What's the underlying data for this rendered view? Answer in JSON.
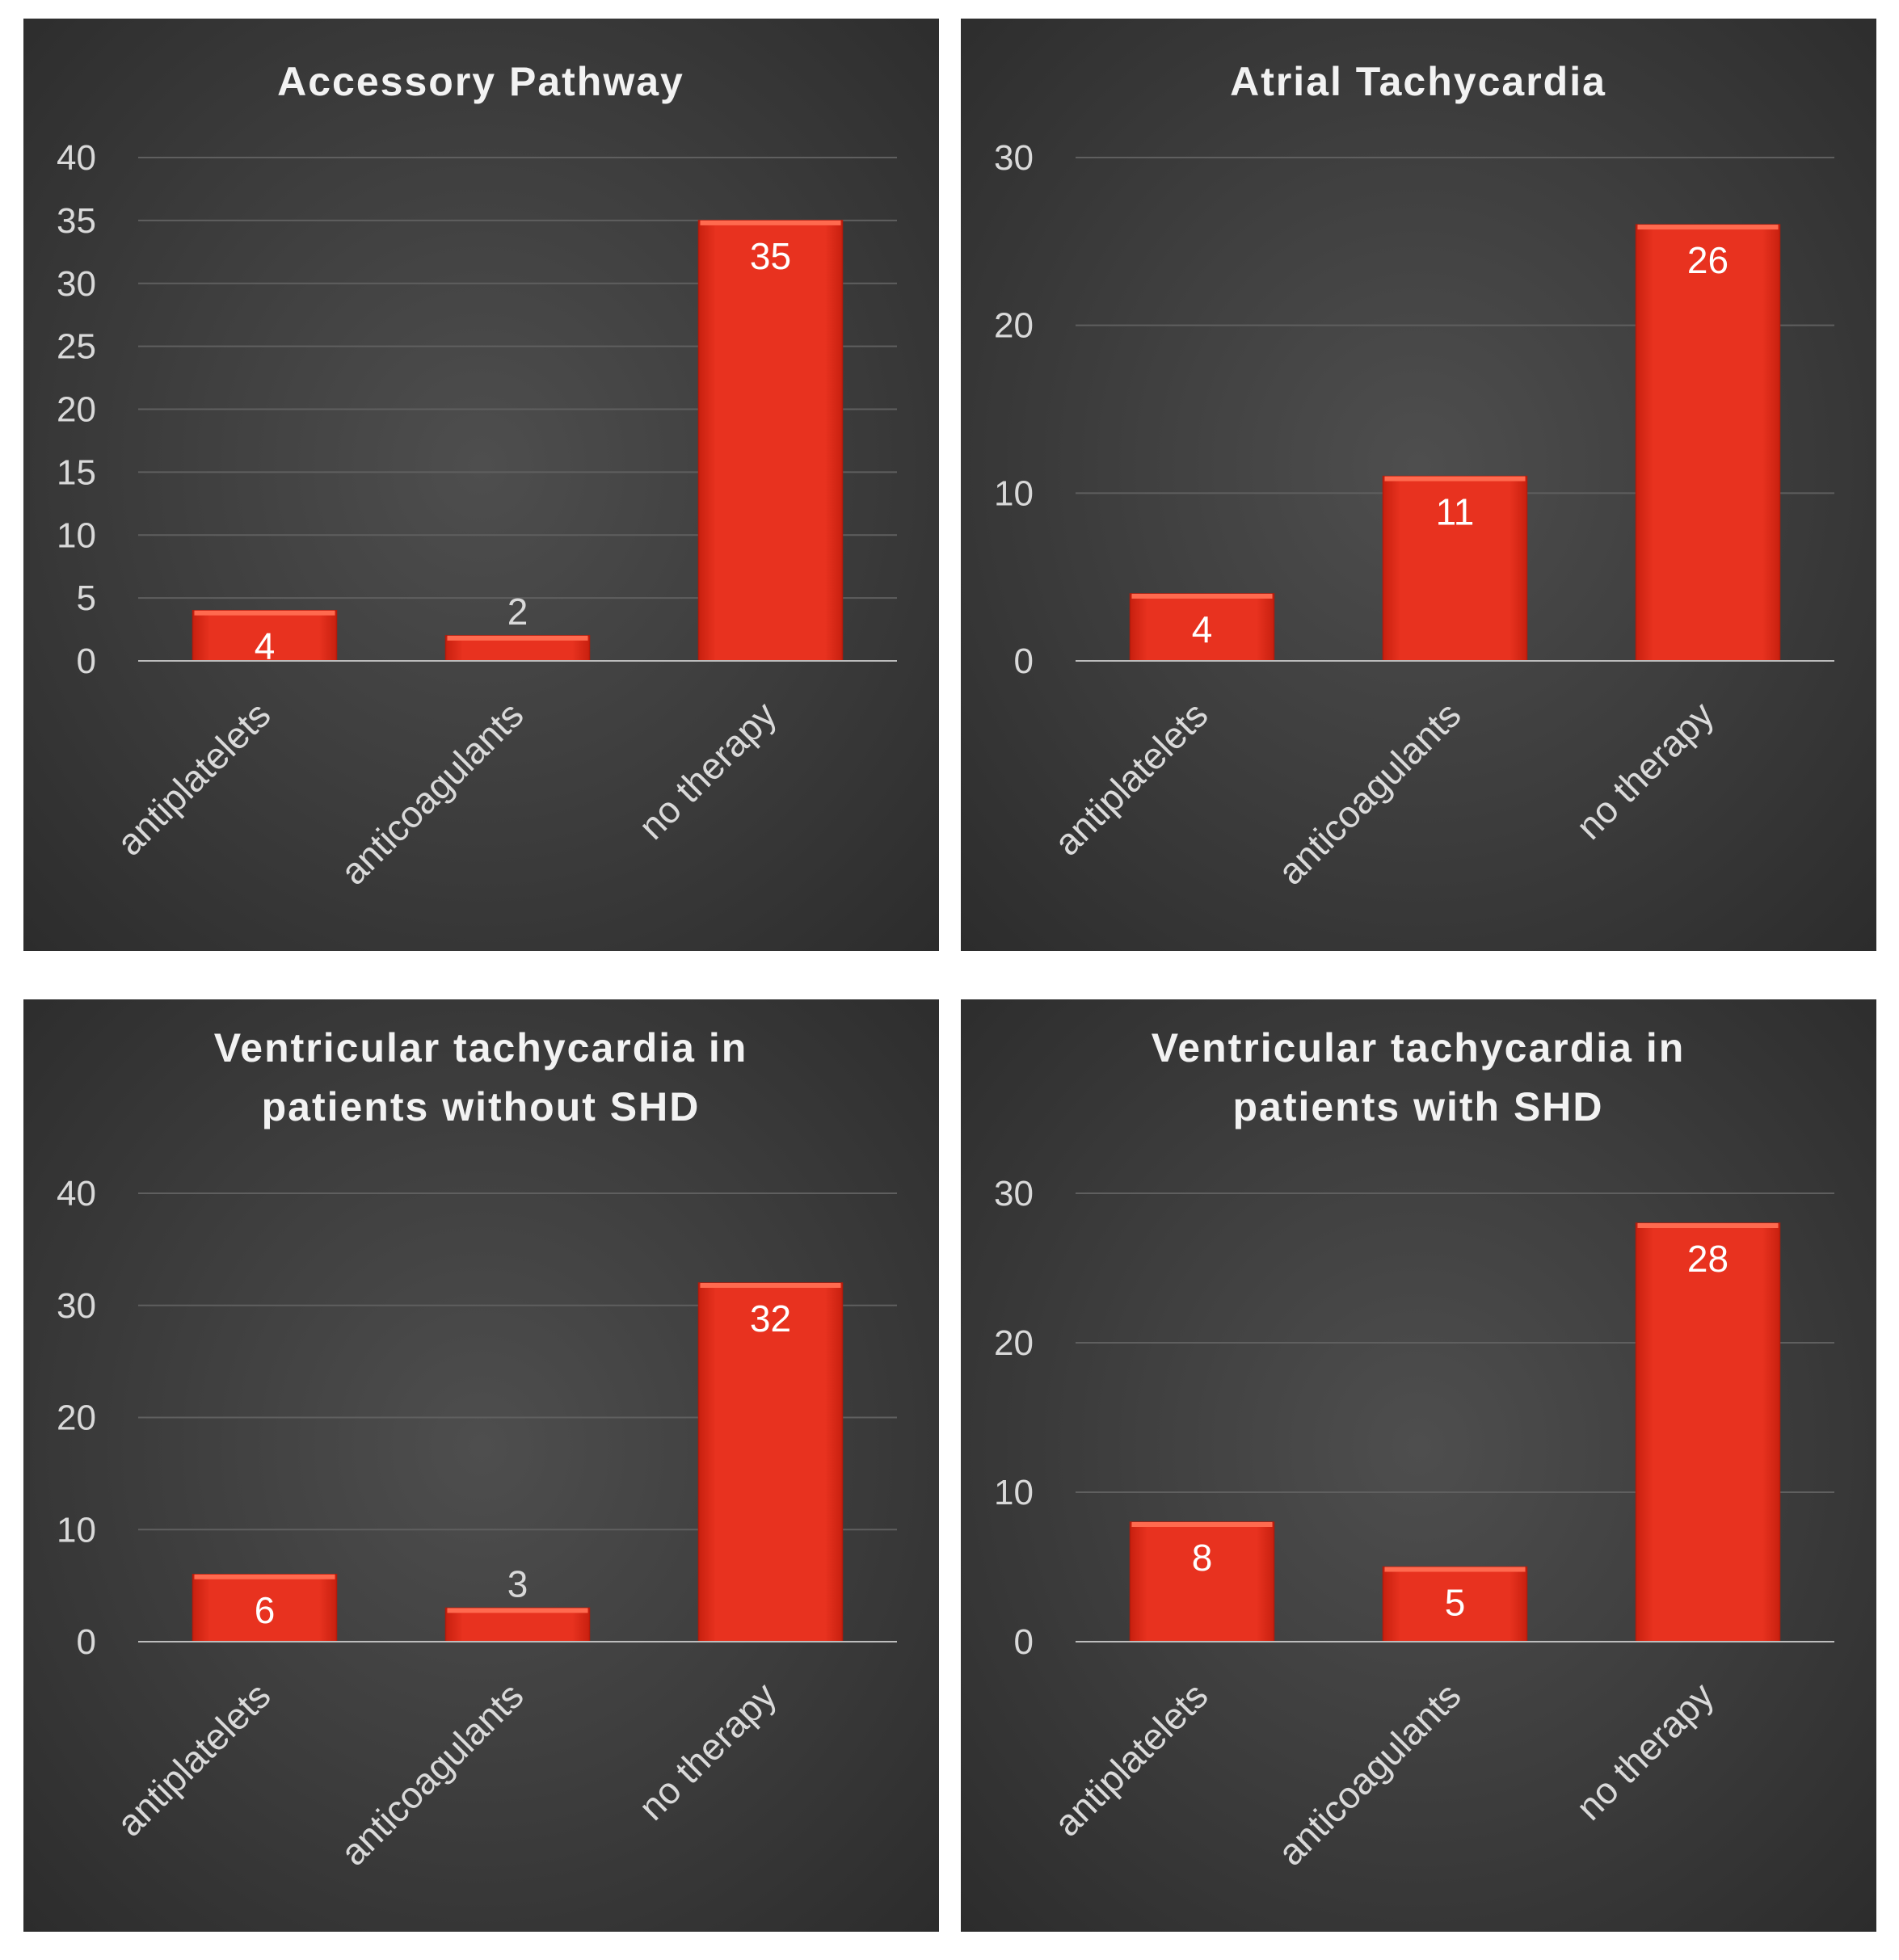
{
  "colors": {
    "bar": "#e8321f",
    "bar_top": "#ff6a4f",
    "grid": "#5f5f5f",
    "axis": "#bdbdbd",
    "label_light": "#ffffff",
    "label_dim": "#d9d9d9"
  },
  "chart_data": [
    {
      "type": "bar",
      "title_lines": [
        "Accessory Pathway"
      ],
      "categories": [
        "antiplatelets",
        "anticoagulants",
        "no therapy"
      ],
      "values": [
        4,
        2,
        35
      ],
      "ylim": [
        0,
        40
      ],
      "yticks": [
        0,
        5,
        10,
        15,
        20,
        25,
        30,
        35,
        40
      ],
      "xlabel": "",
      "ylabel": "",
      "grid": true,
      "legend": "none"
    },
    {
      "type": "bar",
      "title_lines": [
        "Atrial Tachycardia"
      ],
      "categories": [
        "antiplatelets",
        "anticoagulants",
        "no therapy"
      ],
      "values": [
        4,
        11,
        26
      ],
      "ylim": [
        0,
        30
      ],
      "yticks": [
        0,
        10,
        20,
        30
      ],
      "xlabel": "",
      "ylabel": "",
      "grid": true,
      "legend": "none"
    },
    {
      "type": "bar",
      "title_lines": [
        "Ventricular tachycardia in",
        "patients without SHD"
      ],
      "categories": [
        "antiplatelets",
        "anticoagulants",
        "no therapy"
      ],
      "values": [
        6,
        3,
        32
      ],
      "ylim": [
        0,
        40
      ],
      "yticks": [
        0,
        10,
        20,
        30,
        40
      ],
      "xlabel": "",
      "ylabel": "",
      "grid": true,
      "legend": "none"
    },
    {
      "type": "bar",
      "title_lines": [
        "Ventricular tachycardia in",
        "patients with SHD"
      ],
      "categories": [
        "antiplatelets",
        "anticoagulants",
        "no therapy"
      ],
      "values": [
        8,
        5,
        28
      ],
      "ylim": [
        0,
        30
      ],
      "yticks": [
        0,
        10,
        20,
        30
      ],
      "xlabel": "",
      "ylabel": "",
      "grid": true,
      "legend": "none"
    }
  ]
}
